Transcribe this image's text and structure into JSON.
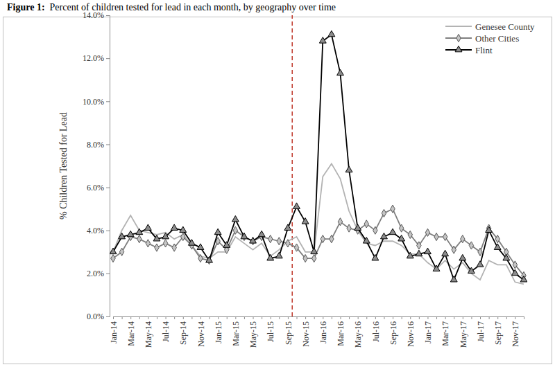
{
  "chart_data": {
    "type": "line",
    "title": "Figure 1:  Percent of children tested for lead in each month, by geography over time",
    "y_label": "% Children Tested for Lead",
    "categories": [
      "Jan-14",
      null,
      "Mar-14",
      null,
      "May-14",
      null,
      "Jul-14",
      null,
      "Sep-14",
      null,
      "Nov-14",
      null,
      "Jan-15",
      null,
      "Mar-15",
      null,
      "May-15",
      null,
      "Jul-15",
      null,
      "Sep-15",
      null,
      "Nov-15",
      null,
      "Jan-16",
      null,
      "Mar-16",
      null,
      "May-16",
      null,
      "Jul-16",
      null,
      "Sep-16",
      null,
      "Nov-16",
      null,
      "Jan-17",
      null,
      "Mar-17",
      null,
      "May-17",
      null,
      "Jul-17",
      null,
      "Sep-17",
      null,
      "Nov-17",
      null
    ],
    "series": [
      {
        "name": "Genesee County",
        "color": "#b3b3b3",
        "marker": "none",
        "line_style": "solid",
        "values": [
          3.0,
          4.0,
          4.7,
          4.0,
          3.9,
          3.8,
          3.9,
          3.6,
          3.8,
          3.3,
          2.8,
          2.7,
          3.0,
          3.0,
          3.7,
          3.4,
          3.1,
          3.4,
          2.8,
          3.1,
          3.5,
          3.7,
          3.0,
          3.0,
          6.5,
          7.1,
          6.4,
          4.9,
          4.0,
          3.4,
          3.3,
          3.5,
          3.5,
          3.3,
          2.9,
          2.9,
          2.5,
          2.2,
          2.6,
          2.2,
          2.5,
          2.0,
          1.7,
          2.6,
          2.4,
          2.4,
          1.6,
          1.5
        ]
      },
      {
        "name": "Other Cities",
        "color": "#7f7f7f",
        "marker": "diamond",
        "line_style": "solid",
        "values": [
          2.7,
          3.0,
          3.7,
          3.6,
          3.4,
          3.2,
          3.4,
          3.2,
          3.7,
          3.3,
          2.7,
          2.6,
          3.5,
          3.1,
          4.0,
          3.7,
          3.5,
          3.7,
          3.6,
          3.5,
          3.4,
          3.2,
          2.7,
          2.7,
          3.6,
          3.6,
          4.4,
          4.1,
          4.0,
          4.3,
          4.0,
          4.8,
          5.0,
          4.1,
          3.8,
          3.3,
          3.9,
          3.7,
          3.7,
          3.1,
          3.6,
          3.3,
          3.0,
          4.1,
          3.6,
          3.0,
          2.4,
          1.9
        ]
      },
      {
        "name": "Flint",
        "color": "#000000",
        "marker": "triangle",
        "line_style": "solid",
        "values": [
          3.0,
          3.7,
          3.8,
          3.9,
          4.1,
          3.6,
          3.7,
          4.1,
          4.0,
          3.4,
          3.2,
          2.6,
          3.9,
          3.3,
          4.5,
          3.7,
          3.5,
          3.8,
          2.7,
          2.8,
          4.1,
          5.1,
          4.4,
          3.0,
          12.8,
          13.1,
          11.3,
          6.8,
          4.1,
          3.5,
          2.7,
          3.7,
          3.9,
          3.6,
          2.8,
          2.9,
          3.0,
          2.2,
          2.9,
          1.7,
          2.7,
          2.1,
          2.4,
          4.0,
          3.2,
          2.7,
          2.0,
          1.7
        ]
      }
    ],
    "ylim": [
      0,
      14
    ],
    "yticks": [
      {
        "value": 0,
        "label": "0.0%"
      },
      {
        "value": 2,
        "label": "2.0%"
      },
      {
        "value": 4,
        "label": "4.0%"
      },
      {
        "value": 6,
        "label": "6.0%"
      },
      {
        "value": 8,
        "label": "8.0%"
      },
      {
        "value": 10,
        "label": "10.0%"
      },
      {
        "value": 12,
        "label": "12.0%"
      },
      {
        "value": 14,
        "label": "14.0%"
      }
    ],
    "reference_line": {
      "position": 20.5,
      "color": "#c0392b",
      "line_style": "dashed"
    },
    "grid": false,
    "legend": "top-right"
  }
}
